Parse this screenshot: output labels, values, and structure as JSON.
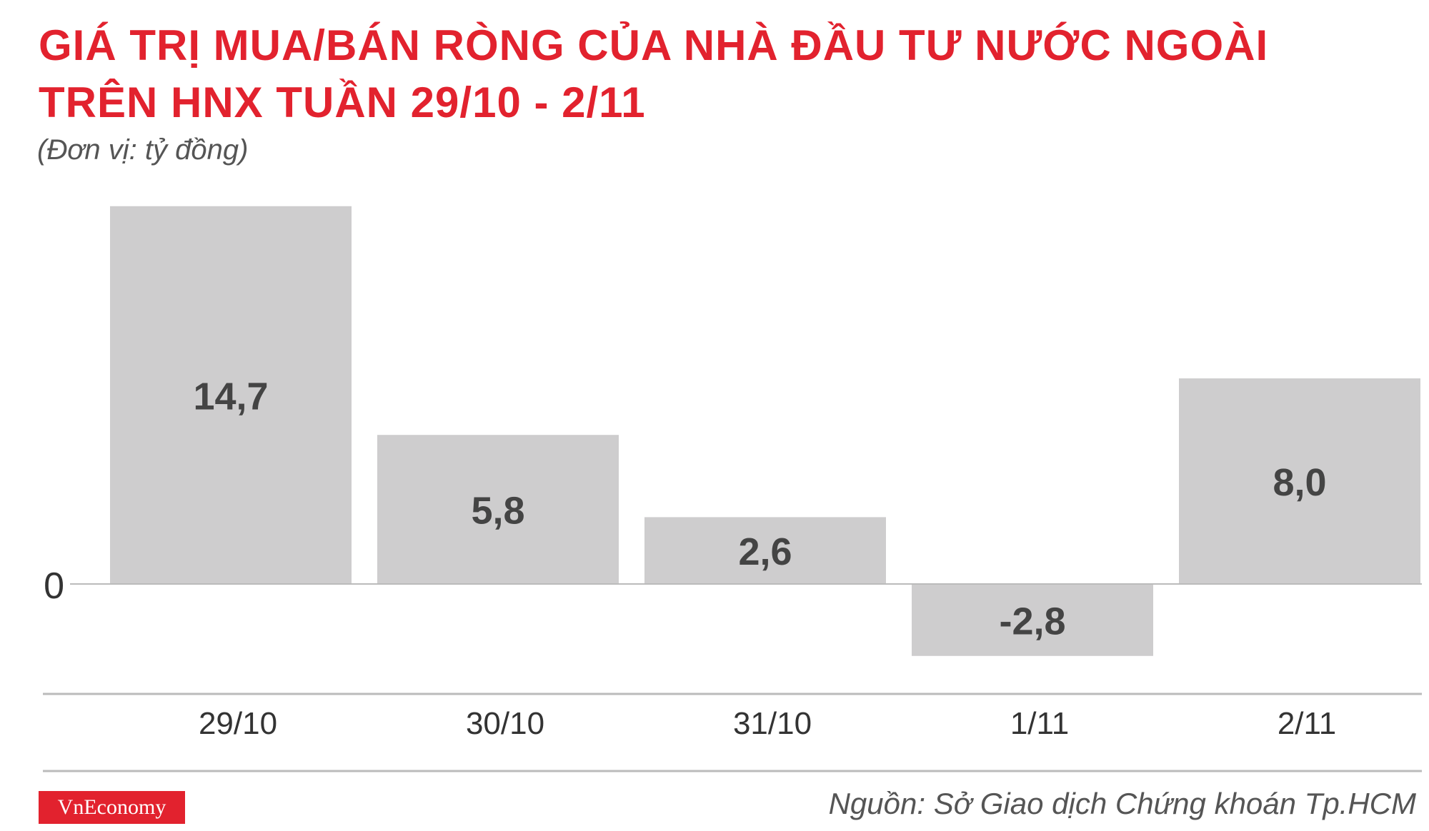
{
  "title_lines": [
    "GIÁ TRỊ MUA/BÁN RÒNG CỦA NHÀ ĐẦU TƯ NƯỚC NGOÀI",
    "TRÊN HNX TUẦN 29/10 - 2/11"
  ],
  "unit_label": "(Đơn vị: tỷ đồng)",
  "chart_data": {
    "type": "bar",
    "categories": [
      "29/10",
      "30/10",
      "31/10",
      "1/11",
      "2/11"
    ],
    "values": [
      14.7,
      5.8,
      2.6,
      -2.8,
      8.0
    ],
    "value_labels": [
      "14,7",
      "5,8",
      "2,6",
      "-2,8",
      "8,0"
    ],
    "zero_label": "0",
    "bar_color": "#cecdce",
    "label_color": "#444444"
  },
  "logo_text": "VnEconomy",
  "source_text": "Nguồn: Sở Giao dịch Chứng khoán Tp.HCM",
  "colors": {
    "accent": "#e2222e"
  }
}
